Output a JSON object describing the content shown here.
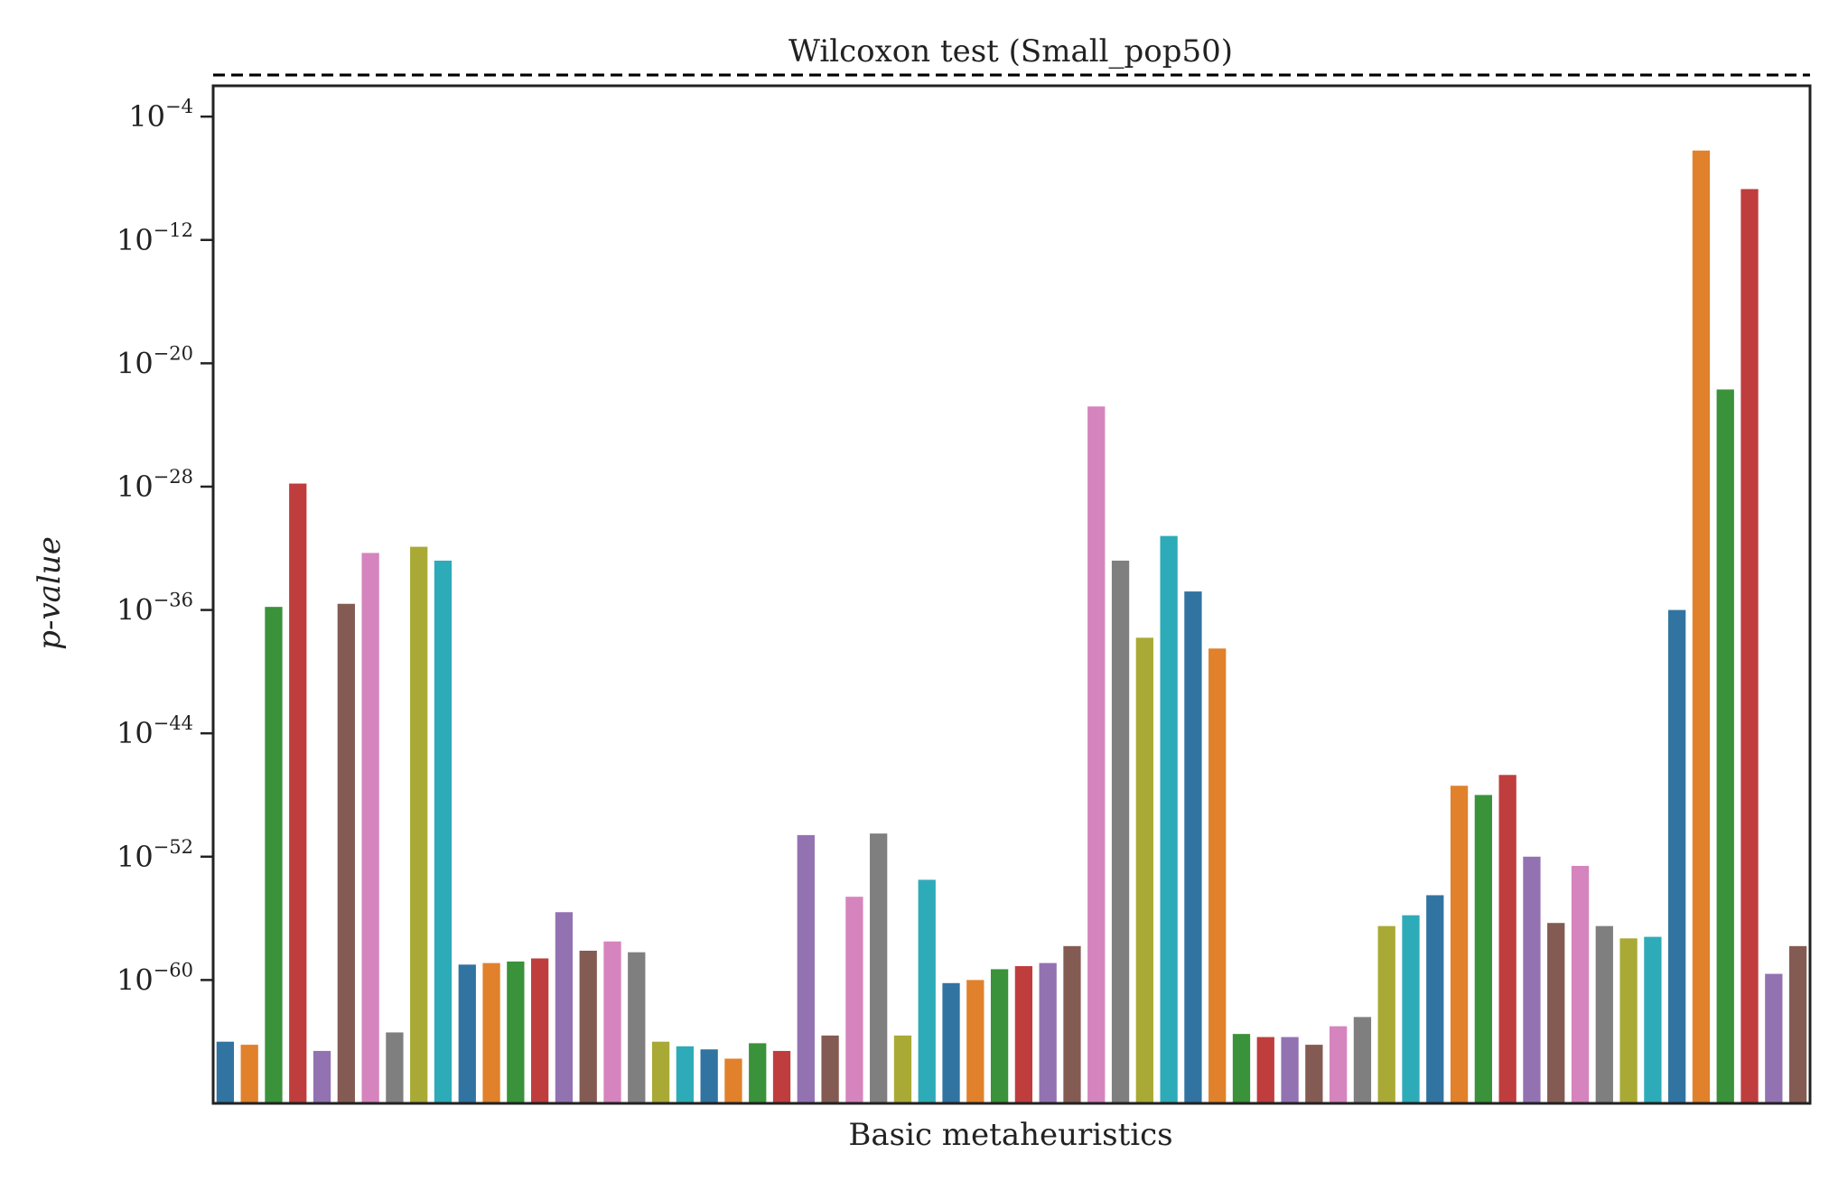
{
  "chart_data": {
    "type": "bar",
    "title": "Wilcoxon test (Small_pop50)",
    "xlabel": "Basic metaheuristics",
    "ylabel": "p-value",
    "y_scale": "log",
    "ylim_log10": [
      -68,
      -2
    ],
    "y_ticks": [
      {
        "exp": -4,
        "label_base": "10",
        "label_exp": "−4"
      },
      {
        "exp": -12,
        "label_base": "10",
        "label_exp": "−12"
      },
      {
        "exp": -20,
        "label_base": "10",
        "label_exp": "−20"
      },
      {
        "exp": -28,
        "label_base": "10",
        "label_exp": "−28"
      },
      {
        "exp": -36,
        "label_base": "10",
        "label_exp": "−36"
      },
      {
        "exp": -44,
        "label_base": "10",
        "label_exp": "−44"
      },
      {
        "exp": -52,
        "label_base": "10",
        "label_exp": "−52"
      },
      {
        "exp": -60,
        "label_base": "10",
        "label_exp": "−60"
      }
    ],
    "x_ticks_visible": false,
    "grid": false,
    "legend": "none",
    "reference_line": {
      "value_log10": -1.3,
      "style": "dashed",
      "color": "#000000"
    },
    "palette": [
      "#3274a1",
      "#e1812c",
      "#3a923a",
      "#c03d3e",
      "#9372b2",
      "#845b53",
      "#d684bd",
      "#7f7f7f",
      "#a9aa35",
      "#2eabb8"
    ],
    "log10_values": [
      -64,
      -64.2,
      -35.8,
      -27.8,
      -64.6,
      -35.6,
      -32.3,
      -63.4,
      -31.9,
      -32.8,
      -59,
      -58.9,
      -58.8,
      -58.6,
      -55.6,
      -58.1,
      -57.5,
      -58.2,
      -64,
      -64.3,
      -64.5,
      -65.1,
      -64.1,
      -64.6,
      -50.6,
      -63.6,
      -54.6,
      -50.5,
      -63.6,
      -53.5,
      -60.2,
      -60,
      -59.3,
      -59.1,
      -58.9,
      -57.8,
      -22.8,
      -32.8,
      -37.8,
      -31.2,
      -34.8,
      -38.5,
      -63.5,
      -63.7,
      -63.7,
      -64.2,
      -63,
      -62.4,
      -56.5,
      -55.8,
      -54.5,
      -47.4,
      -48,
      -46.7,
      -52,
      -56.3,
      -52.6,
      -56.5,
      -57.3,
      -57.2,
      -36,
      -6.2,
      -21.7,
      -8.7,
      -59.6,
      -57.8
    ]
  }
}
